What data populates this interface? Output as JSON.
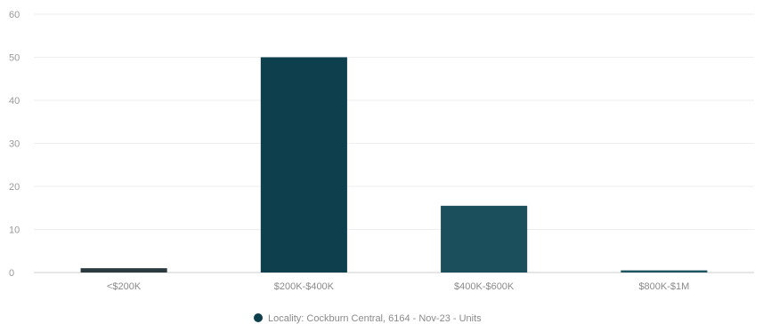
{
  "chart_data": {
    "type": "bar",
    "categories": [
      "<$200K",
      "$200K-$400K",
      "$400K-$600K",
      "$800K-$1M"
    ],
    "series": [
      {
        "name": "Locality: Cockburn Central, 6164 - Nov-23 - Units",
        "values": [
          1,
          50,
          15.5,
          0.5
        ]
      }
    ],
    "ylim": [
      0,
      60
    ],
    "yticks": [
      0,
      10,
      20,
      30,
      40,
      50,
      60
    ],
    "grid": true,
    "legend_position": "bottom-center",
    "colors": {
      "bars": [
        "#2b3a3e",
        "#0e3f4c",
        "#1b4f5b",
        "#1f5561"
      ],
      "legend_marker": "#0e3f4c",
      "grid": "#eeeeee",
      "axis": "#cccccc"
    }
  }
}
